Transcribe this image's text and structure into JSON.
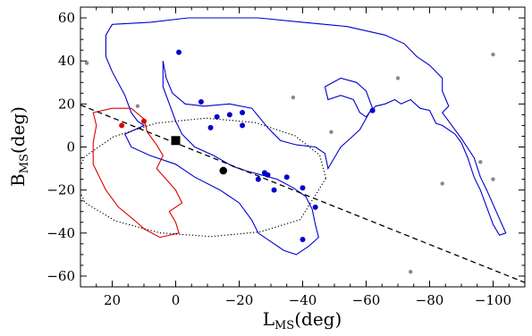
{
  "chart_data": {
    "type": "scatter",
    "title": "",
    "xlabel": "L",
    "xlabel_sub": "MS",
    "xlabel_unit": "(deg)",
    "ylabel": "B",
    "ylabel_sub": "MS",
    "ylabel_unit": "(deg)",
    "xlim": [
      30,
      -110
    ],
    "ylim": [
      -65,
      65
    ],
    "x_reversed": true,
    "x_ticks": [
      20,
      0,
      -20,
      -40,
      -60,
      -80,
      -100
    ],
    "x_tick_labels": [
      "20",
      "0",
      "−20",
      "−40",
      "−60",
      "−80",
      "−100"
    ],
    "y_ticks": [
      -60,
      -40,
      -20,
      0,
      20,
      40,
      60
    ],
    "y_tick_labels": [
      "−60",
      "−40",
      "−20",
      "0",
      "20",
      "40",
      "60"
    ],
    "grid": false,
    "legend": "none",
    "colors": {
      "blue": "#0000cc",
      "red": "#dd0000",
      "gray": "#888888",
      "black": "#000000"
    },
    "series": [
      {
        "marker": "circle",
        "color": "#0000cc",
        "x": [
          -1,
          -8,
          -11,
          -13,
          -17,
          -21,
          -21,
          -26,
          -28,
          -29,
          -31,
          -35,
          -40,
          -44,
          -40,
          -62
        ],
        "y": [
          44,
          21,
          9,
          14,
          15,
          16,
          10,
          -15,
          -12,
          -13,
          -20,
          -14,
          -19,
          -28,
          -43,
          17
        ]
      },
      {
        "marker": "circle",
        "color": "#dd0000",
        "x": [
          17,
          10
        ],
        "y": [
          10,
          12
        ]
      },
      {
        "marker": "circle",
        "color": "#888888",
        "x": [
          28,
          12,
          -37,
          -49,
          -70,
          -74,
          -84,
          -96,
          -100,
          -100
        ],
        "y": [
          39,
          19,
          23,
          7,
          32,
          -58,
          -17,
          -7,
          43,
          -15
        ]
      },
      {
        "marker": "square",
        "color": "#000000",
        "x": [
          0
        ],
        "y": [
          3
        ]
      },
      {
        "marker": "circle",
        "color": "#000000",
        "x": [
          -15
        ],
        "y": [
          -11
        ]
      }
    ],
    "reference_line": {
      "style": "dashed",
      "color": "#000000",
      "points": [
        [
          30,
          19.5
        ],
        [
          -110,
          -63
        ]
      ]
    },
    "ellipse": {
      "style": "dotted",
      "color": "#000000",
      "points": [
        [
          -47.32,
          -14.48
        ],
        [
          -45.34,
          -3.73
        ],
        [
          -37.52,
          5.32
        ],
        [
          -24.93,
          11.38
        ],
        [
          -9.55,
          13.42
        ],
        [
          6.15,
          11.08
        ],
        [
          19.6,
          4.74
        ],
        [
          28.71,
          -4.52
        ],
        [
          31.93,
          -15.28
        ],
        [
          28.59,
          -25.83
        ],
        [
          18.99,
          -34.41
        ],
        [
          4.99,
          -39.9
        ],
        [
          -11.1,
          -41.61
        ],
        [
          -26.59,
          -39.47
        ],
        [
          -39.2,
          -33.75
        ],
        [
          -47.32,
          -14.48
        ]
      ]
    },
    "contours": [
      {
        "name": "",
        "color": "#0000cc",
        "points": [
          [
            4,
            40
          ],
          [
            3,
            32
          ],
          [
            1,
            25
          ],
          [
            -3,
            20
          ],
          [
            -9,
            19
          ],
          [
            -17,
            20
          ],
          [
            -24,
            18
          ],
          [
            -29,
            9
          ],
          [
            -33,
            3
          ],
          [
            -38,
            1
          ],
          [
            -44,
            0
          ],
          [
            -47,
            -3
          ],
          [
            -48,
            -10
          ],
          [
            -50,
            -5
          ],
          [
            -52,
            0
          ],
          [
            -55,
            4
          ],
          [
            -58,
            8
          ],
          [
            -61,
            16
          ],
          [
            -63,
            19
          ],
          [
            -66,
            20
          ],
          [
            -69,
            22
          ],
          [
            -71,
            20
          ],
          [
            -74,
            22
          ],
          [
            -77,
            18
          ],
          [
            -80,
            17
          ],
          [
            -82,
            11
          ],
          [
            -84,
            10
          ],
          [
            -88,
            6
          ],
          [
            -90,
            2
          ],
          [
            -92,
            -5
          ],
          [
            -94,
            -14
          ],
          [
            -96,
            -20
          ],
          [
            -98,
            -28
          ],
          [
            -100,
            -36
          ],
          [
            -102,
            -41
          ],
          [
            -104,
            -40
          ],
          [
            -101,
            -30
          ],
          [
            -98,
            -20
          ],
          [
            -96,
            -14
          ],
          [
            -94,
            -5
          ],
          [
            -90,
            4
          ],
          [
            -86,
            12
          ],
          [
            -84,
            16
          ],
          [
            -86,
            19
          ],
          [
            -84,
            26
          ],
          [
            -84,
            32
          ],
          [
            -80,
            38
          ],
          [
            -76,
            42
          ],
          [
            -72,
            48
          ],
          [
            -66,
            52
          ],
          [
            -54,
            56
          ],
          [
            -40,
            58
          ],
          [
            -26,
            60
          ],
          [
            -12,
            60
          ],
          [
            -4,
            60
          ],
          [
            8,
            58
          ],
          [
            20,
            57
          ],
          [
            22,
            52
          ],
          [
            22,
            42
          ],
          [
            20,
            35
          ],
          [
            16,
            24
          ],
          [
            14,
            16
          ],
          [
            12,
            12
          ],
          [
            10,
            10
          ],
          [
            16,
            6
          ],
          [
            14,
            0
          ],
          [
            8,
            -4
          ],
          [
            0,
            -8
          ],
          [
            -6,
            -14
          ],
          [
            -14,
            -20
          ],
          [
            -20,
            -26
          ],
          [
            -24,
            -34
          ],
          [
            -26,
            -40
          ],
          [
            -30,
            -44
          ],
          [
            -34,
            -48
          ],
          [
            -38,
            -50
          ],
          [
            -42,
            -46
          ],
          [
            -45,
            -42
          ],
          [
            -44,
            -36
          ],
          [
            -43,
            -29
          ],
          [
            -41,
            -23
          ],
          [
            -37,
            -19
          ],
          [
            -32,
            -15
          ],
          [
            -27,
            -13
          ],
          [
            -22,
            -11
          ],
          [
            -18,
            -9
          ],
          [
            -12,
            -4
          ],
          [
            -6,
            0
          ],
          [
            -2,
            6
          ],
          [
            0,
            12
          ],
          [
            2,
            20
          ],
          [
            4,
            28
          ],
          [
            4,
            40
          ]
        ]
      },
      {
        "name": "",
        "color": "#0000cc",
        "points": [
          [
            -47,
            28
          ],
          [
            -52,
            32
          ],
          [
            -57,
            30
          ],
          [
            -60,
            26
          ],
          [
            -62,
            18
          ],
          [
            -60,
            14
          ],
          [
            -58,
            16
          ],
          [
            -56,
            22
          ],
          [
            -52,
            24
          ],
          [
            -48,
            22
          ],
          [
            -47,
            28
          ]
        ]
      },
      {
        "name": "",
        "color": "#dd0000",
        "points": [
          [
            14,
            18
          ],
          [
            10,
            13
          ],
          [
            9,
            7
          ],
          [
            6,
            1
          ],
          [
            4,
            -4
          ],
          [
            6,
            -10
          ],
          [
            3,
            -15
          ],
          [
            0,
            -20
          ],
          [
            -2,
            -26
          ],
          [
            2,
            -30
          ],
          [
            0,
            -35
          ],
          [
            -1,
            -40
          ],
          [
            5,
            -42
          ],
          [
            10,
            -38
          ],
          [
            13,
            -34
          ],
          [
            18,
            -28
          ],
          [
            22,
            -20
          ],
          [
            26,
            -8
          ],
          [
            26,
            2
          ],
          [
            25,
            10
          ],
          [
            26,
            16
          ],
          [
            20,
            18
          ],
          [
            14,
            18
          ]
        ]
      }
    ]
  }
}
